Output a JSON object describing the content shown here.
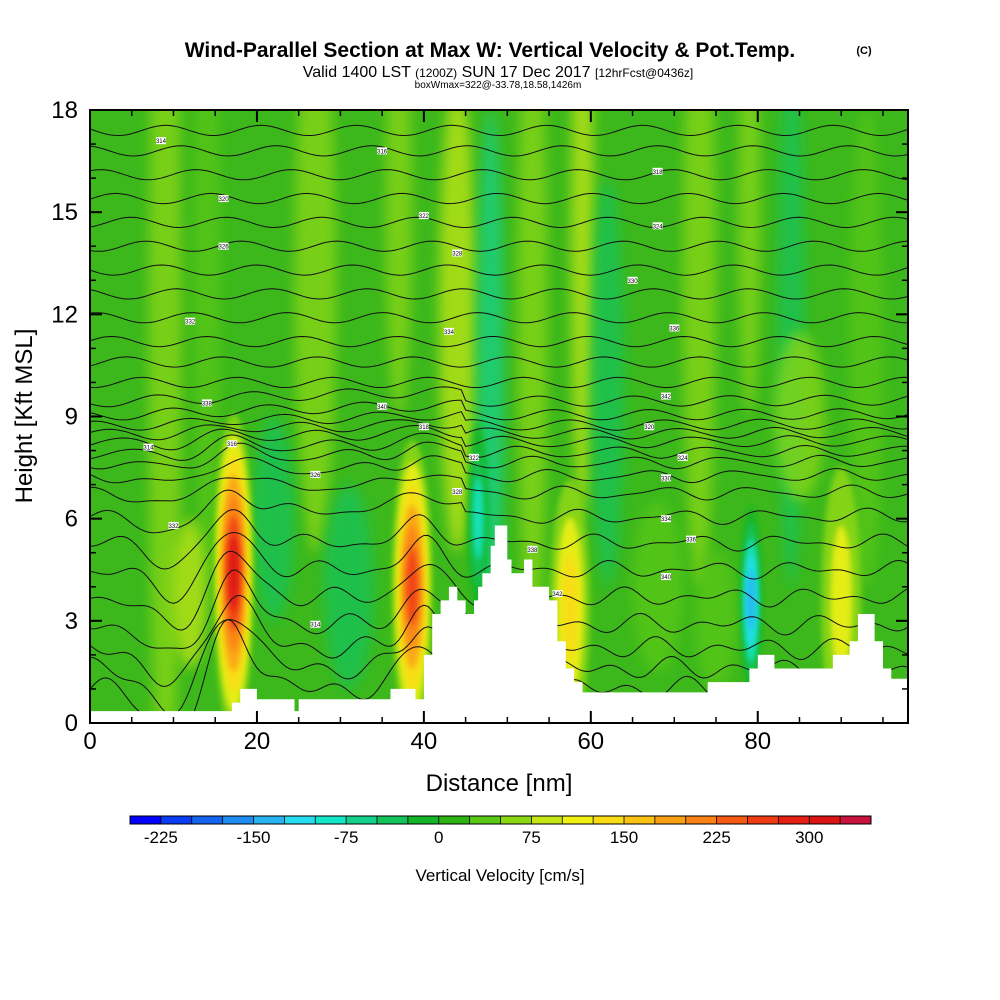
{
  "chart_data": {
    "type": "heatmap",
    "title": "Wind-Parallel Section at Max W: Vertical Velocity & Pot.Temp.",
    "copyright": "(C)",
    "subtitle_main": "Valid 1400 LST",
    "subtitle_utc": "(1200Z)",
    "subtitle_date": "SUN 17 Dec 2017",
    "subtitle_fcst": "[12hrFcst@0436z]",
    "box_info": "boxWmax=322@-33.78,18.58,1426m",
    "xlabel": "Distance [nm]",
    "ylabel": "Height [Kft MSL]",
    "xlim": [
      0,
      98
    ],
    "ylim": [
      0,
      18
    ],
    "x_ticks": [
      0,
      20,
      40,
      60,
      80
    ],
    "y_ticks": [
      0,
      3,
      6,
      9,
      12,
      15,
      18
    ],
    "colorbar": {
      "label": "Vertical Velocity [cm/s]",
      "tick_labels": [
        "-225",
        "-150",
        "-75",
        "0",
        "75",
        "150",
        "225",
        "300"
      ],
      "tick_values": [
        -225,
        -150,
        -75,
        0,
        75,
        150,
        225,
        300
      ],
      "range": [
        -250,
        350
      ],
      "colors": [
        "#0000ff",
        "#0a3cf5",
        "#1464f0",
        "#1e8cf0",
        "#28b4f0",
        "#28dcf0",
        "#14e6c8",
        "#14d28c",
        "#14c35a",
        "#14b428",
        "#2db414",
        "#5ac814",
        "#8cd714",
        "#c3e614",
        "#f0f014",
        "#fadc14",
        "#fac314",
        "#faa014",
        "#fa8214",
        "#f55a14",
        "#f03c14",
        "#e61e14",
        "#dc1414",
        "#c8143c"
      ]
    },
    "terrain_profile": {
      "distance_nm": [
        0,
        16,
        17,
        18,
        19,
        20,
        21,
        24,
        24.5,
        25,
        35,
        36,
        38,
        39,
        40,
        41,
        42,
        42.5,
        43,
        43.5,
        44,
        44.5,
        45,
        45.5,
        46,
        46.5,
        47,
        47.5,
        48,
        48.5,
        49,
        49.5,
        50,
        50.5,
        51,
        52,
        53,
        54,
        55,
        56,
        57,
        58,
        59,
        60,
        61,
        62,
        63,
        64,
        65,
        66,
        67,
        68,
        69,
        70,
        71,
        72,
        73,
        74,
        75,
        76,
        77,
        78,
        79,
        80,
        81,
        82,
        83,
        84,
        85,
        86,
        87,
        88,
        89,
        90,
        91,
        92,
        93,
        94,
        95,
        96,
        97,
        98
      ],
      "height_kft": [
        0.35,
        0.35,
        0.6,
        1.0,
        1.0,
        0.7,
        0.7,
        0.7,
        0.35,
        0.7,
        0.7,
        1.0,
        1.0,
        0.7,
        2.0,
        3.2,
        3.6,
        3.6,
        4.0,
        4.0,
        3.6,
        3.6,
        3.2,
        3.2,
        3.6,
        4.0,
        4.4,
        4.4,
        5.2,
        5.8,
        5.8,
        5.8,
        4.8,
        4.4,
        4.4,
        4.8,
        4.0,
        4.0,
        3.6,
        2.4,
        1.6,
        1.2,
        0.9,
        0.9,
        0.9,
        0.9,
        0.9,
        0.9,
        0.9,
        0.9,
        0.9,
        0.9,
        0.9,
        0.9,
        0.9,
        0.9,
        0.9,
        1.2,
        1.2,
        1.2,
        1.2,
        1.2,
        1.6,
        2.0,
        2.0,
        1.6,
        1.6,
        1.6,
        1.6,
        1.6,
        1.6,
        1.6,
        2.0,
        2.0,
        2.4,
        3.2,
        3.2,
        2.4,
        1.6,
        1.3,
        1.3,
        1.6,
        1.6,
        1.6
      ]
    },
    "updraft_cores": [
      {
        "distance_nm": 17.2,
        "height_kft": 4.4,
        "value_cms": 322
      },
      {
        "distance_nm": 38.6,
        "height_kft": 4.0,
        "value_cms": 260
      },
      {
        "distance_nm": 57.5,
        "height_kft": 3.4,
        "value_cms": 150
      },
      {
        "distance_nm": 90.0,
        "height_kft": 3.6,
        "value_cms": 120
      }
    ],
    "downdraft_cores": [
      {
        "distance_nm": 79.2,
        "height_kft": 3.6,
        "value_cms": -150
      },
      {
        "distance_nm": 46.5,
        "height_kft": 6.0,
        "value_cms": -100
      }
    ],
    "isentrope_labels": [
      "314",
      "316",
      "318",
      "320",
      "322",
      "324",
      "326",
      "328",
      "330",
      "332",
      "334",
      "336",
      "338",
      "340",
      "342"
    ]
  }
}
